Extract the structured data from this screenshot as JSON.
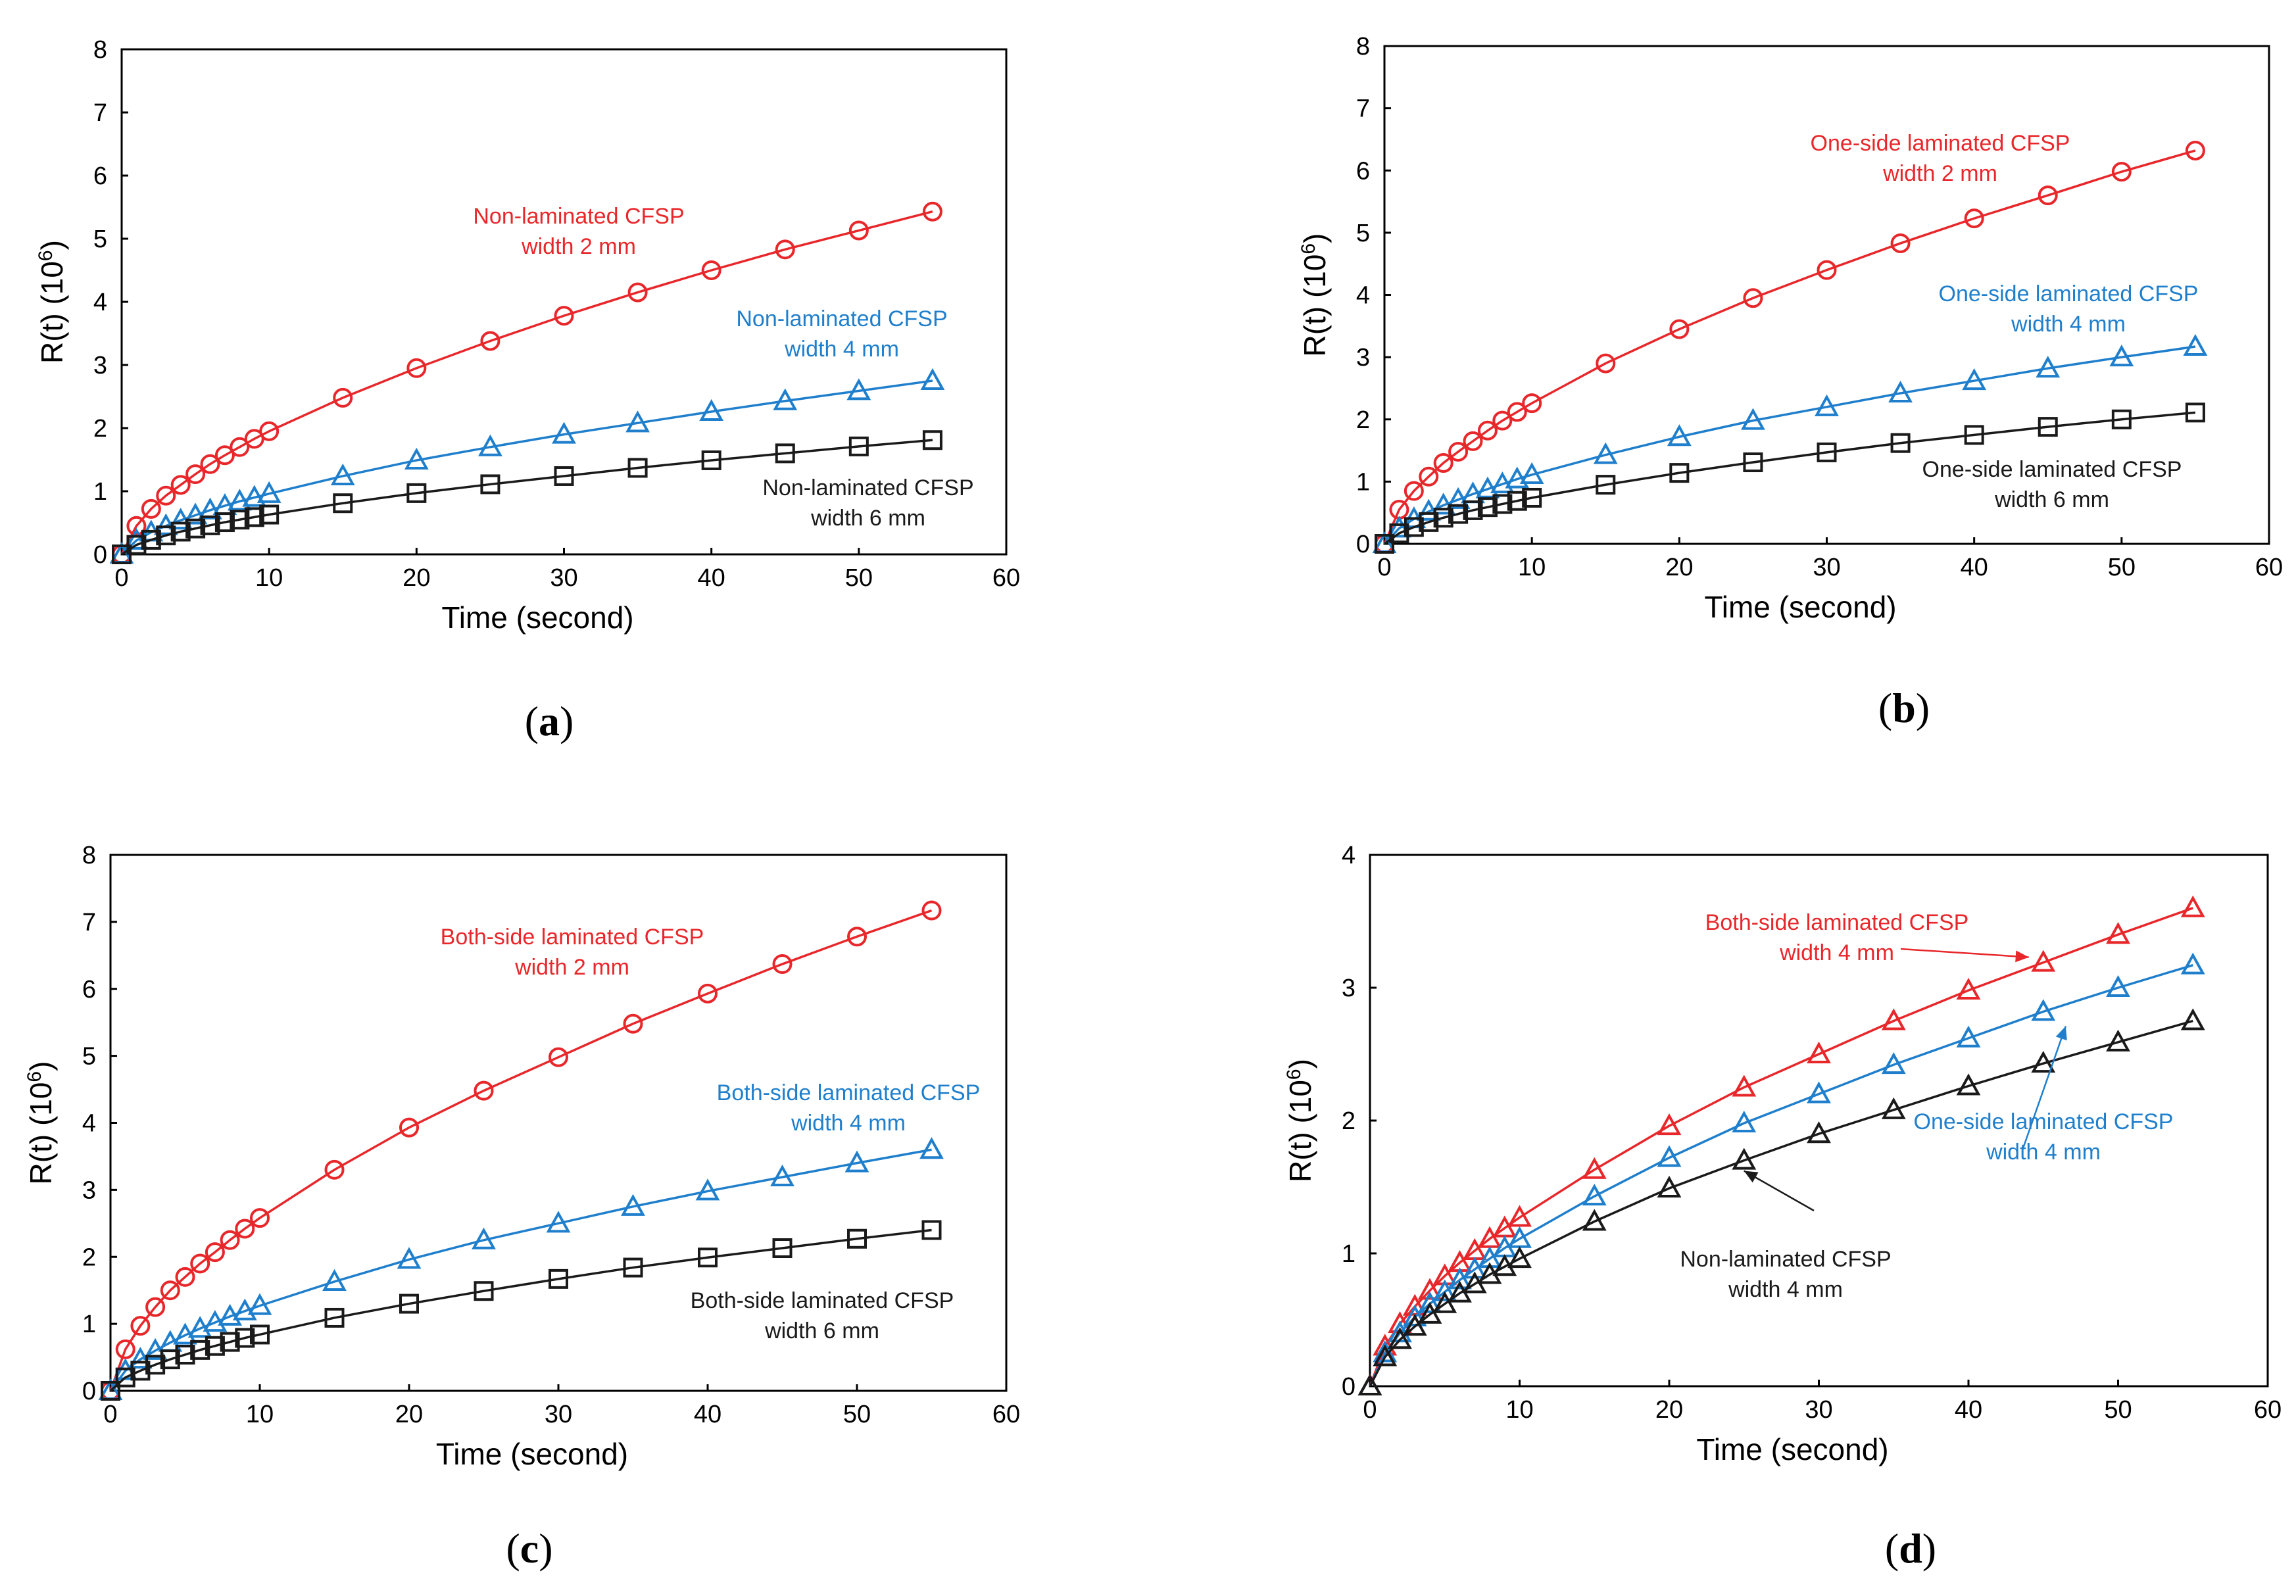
{
  "colors": {
    "red": "#e8272b",
    "blue": "#1f7fcc",
    "black": "#1a1a1a"
  },
  "chart_data": [
    {
      "panel": "a",
      "type": "line",
      "xlabel": "Time (second)",
      "ylabel_base": "R(t) (10",
      "ylabel_exp": "6",
      "ylabel_close": ")",
      "xlim": [
        0,
        60
      ],
      "ylim": [
        0,
        8
      ],
      "xticks": [
        0,
        10,
        20,
        30,
        40,
        50,
        60
      ],
      "yticks": [
        0,
        1,
        2,
        3,
        4,
        5,
        6,
        7,
        8
      ],
      "x": [
        0,
        1,
        2,
        3,
        4,
        5,
        6,
        7,
        8,
        9,
        10,
        15,
        20,
        25,
        30,
        35,
        40,
        45,
        50,
        55
      ],
      "series": [
        {
          "name": "Non-laminated CFSP width 2 mm",
          "color": "red",
          "marker": "circle",
          "values": [
            0,
            0.45,
            0.72,
            0.93,
            1.1,
            1.27,
            1.43,
            1.57,
            1.7,
            1.83,
            1.95,
            2.48,
            2.95,
            3.38,
            3.78,
            4.15,
            4.5,
            4.83,
            5.13,
            5.43
          ]
        },
        {
          "name": "Non-laminated CFSP width 4 mm",
          "color": "blue",
          "marker": "triangle",
          "values": [
            0,
            0.22,
            0.35,
            0.45,
            0.54,
            0.62,
            0.7,
            0.77,
            0.84,
            0.9,
            0.96,
            1.24,
            1.49,
            1.7,
            1.9,
            2.08,
            2.26,
            2.43,
            2.59,
            2.75
          ]
        },
        {
          "name": "Non-laminated CFSP width 6 mm",
          "color": "black",
          "marker": "square",
          "values": [
            0,
            0.15,
            0.23,
            0.3,
            0.36,
            0.41,
            0.46,
            0.51,
            0.55,
            0.59,
            0.63,
            0.81,
            0.97,
            1.11,
            1.24,
            1.37,
            1.49,
            1.6,
            1.71,
            1.81
          ]
        }
      ],
      "annotations": [
        {
          "lines": [
            "Non-laminated CFSP",
            "width 2 mm"
          ],
          "color": "red"
        },
        {
          "lines": [
            "Non-laminated CFSP",
            "width 4 mm"
          ],
          "color": "blue"
        },
        {
          "lines": [
            "Non-laminated CFSP",
            "width 6 mm"
          ],
          "color": "black"
        }
      ],
      "caption": "a"
    },
    {
      "panel": "b",
      "type": "line",
      "xlabel": "Time (second)",
      "ylabel_base": "R(t) (10",
      "ylabel_exp": "6",
      "ylabel_close": ")",
      "xlim": [
        0,
        60
      ],
      "ylim": [
        0,
        8
      ],
      "xticks": [
        0,
        10,
        20,
        30,
        40,
        50,
        60
      ],
      "yticks": [
        0,
        1,
        2,
        3,
        4,
        5,
        6,
        7,
        8
      ],
      "x": [
        0,
        1,
        2,
        3,
        4,
        5,
        6,
        7,
        8,
        9,
        10,
        15,
        20,
        25,
        30,
        35,
        40,
        45,
        50,
        55
      ],
      "series": [
        {
          "name": "One-side laminated CFSP width 2 mm",
          "color": "red",
          "marker": "circle",
          "values": [
            0,
            0.55,
            0.85,
            1.08,
            1.3,
            1.48,
            1.65,
            1.82,
            1.98,
            2.12,
            2.26,
            2.9,
            3.45,
            3.95,
            4.4,
            4.83,
            5.23,
            5.6,
            5.98,
            6.32
          ]
        },
        {
          "name": "One-side laminated CFSP width 4 mm",
          "color": "blue",
          "marker": "triangle",
          "values": [
            0,
            0.25,
            0.4,
            0.52,
            0.62,
            0.71,
            0.8,
            0.88,
            0.96,
            1.04,
            1.11,
            1.43,
            1.72,
            1.98,
            2.2,
            2.42,
            2.62,
            2.82,
            3.0,
            3.17
          ]
        },
        {
          "name": "One-side laminated CFSP width 6 mm",
          "color": "black",
          "marker": "square",
          "values": [
            0,
            0.17,
            0.27,
            0.35,
            0.42,
            0.48,
            0.54,
            0.59,
            0.64,
            0.69,
            0.74,
            0.95,
            1.14,
            1.31,
            1.47,
            1.62,
            1.75,
            1.88,
            2.0,
            2.11
          ]
        }
      ],
      "annotations": [
        {
          "lines": [
            "One-side laminated CFSP",
            "width 2 mm"
          ],
          "color": "red"
        },
        {
          "lines": [
            "One-side laminated CFSP",
            "width 4 mm"
          ],
          "color": "blue"
        },
        {
          "lines": [
            "One-side laminated CFSP",
            "width 6 mm"
          ],
          "color": "black"
        }
      ],
      "caption": "b"
    },
    {
      "panel": "c",
      "type": "line",
      "xlabel": "Time (second)",
      "ylabel_base": "R(t) (10",
      "ylabel_exp": "6",
      "ylabel_close": ")",
      "xlim": [
        0,
        60
      ],
      "ylim": [
        0,
        8
      ],
      "xticks": [
        0,
        10,
        20,
        30,
        40,
        50,
        60
      ],
      "yticks": [
        0,
        1,
        2,
        3,
        4,
        5,
        6,
        7,
        8
      ],
      "x": [
        0,
        1,
        2,
        3,
        4,
        5,
        6,
        7,
        8,
        9,
        10,
        15,
        20,
        25,
        30,
        35,
        40,
        45,
        50,
        55
      ],
      "series": [
        {
          "name": "Both-side laminated CFSP width 2 mm",
          "color": "red",
          "marker": "circle",
          "values": [
            0,
            0.62,
            0.97,
            1.25,
            1.5,
            1.7,
            1.9,
            2.07,
            2.25,
            2.42,
            2.58,
            3.3,
            3.93,
            4.48,
            4.98,
            5.48,
            5.93,
            6.37,
            6.78,
            7.17
          ]
        },
        {
          "name": "Both-side laminated CFSP width 4 mm",
          "color": "blue",
          "marker": "triangle",
          "values": [
            0,
            0.3,
            0.47,
            0.6,
            0.72,
            0.83,
            0.93,
            1.02,
            1.11,
            1.19,
            1.27,
            1.63,
            1.96,
            2.25,
            2.5,
            2.75,
            2.98,
            3.19,
            3.4,
            3.6
          ]
        },
        {
          "name": "Both-side laminated CFSP width 6 mm",
          "color": "black",
          "marker": "square",
          "values": [
            0,
            0.2,
            0.3,
            0.39,
            0.47,
            0.54,
            0.61,
            0.67,
            0.73,
            0.79,
            0.84,
            1.09,
            1.3,
            1.49,
            1.67,
            1.84,
            1.99,
            2.13,
            2.27,
            2.4
          ]
        }
      ],
      "annotations": [
        {
          "lines": [
            "Both-side laminated CFSP",
            "width 2 mm"
          ],
          "color": "red"
        },
        {
          "lines": [
            "Both-side laminated CFSP",
            "width 4 mm"
          ],
          "color": "blue"
        },
        {
          "lines": [
            "Both-side laminated CFSP",
            "width 6 mm"
          ],
          "color": "black"
        }
      ],
      "caption": "c"
    },
    {
      "panel": "d",
      "type": "line",
      "xlabel": "Time (second)",
      "ylabel_base": "R(t) (10",
      "ylabel_exp": "6",
      "ylabel_close": ")",
      "xlim": [
        0,
        60
      ],
      "ylim": [
        0,
        4
      ],
      "xticks": [
        0,
        10,
        20,
        30,
        40,
        50,
        60
      ],
      "yticks": [
        0,
        1,
        2,
        3,
        4
      ],
      "x": [
        0,
        1,
        2,
        3,
        4,
        5,
        6,
        7,
        8,
        9,
        10,
        15,
        20,
        25,
        30,
        35,
        40,
        45,
        50,
        55
      ],
      "series": [
        {
          "name": "Both-side laminated CFSP width 4 mm",
          "color": "red",
          "marker": "triangle",
          "values": [
            0,
            0.3,
            0.47,
            0.6,
            0.72,
            0.83,
            0.93,
            1.02,
            1.11,
            1.19,
            1.27,
            1.63,
            1.96,
            2.25,
            2.5,
            2.75,
            2.98,
            3.19,
            3.4,
            3.6
          ]
        },
        {
          "name": "One-side laminated CFSP width 4 mm",
          "color": "blue",
          "marker": "triangle",
          "values": [
            0,
            0.25,
            0.4,
            0.52,
            0.62,
            0.71,
            0.8,
            0.88,
            0.96,
            1.04,
            1.11,
            1.43,
            1.72,
            1.98,
            2.2,
            2.42,
            2.62,
            2.82,
            3.0,
            3.17
          ]
        },
        {
          "name": "Non-laminated CFSP width 4 mm",
          "color": "black",
          "marker": "triangle",
          "values": [
            0,
            0.22,
            0.35,
            0.45,
            0.54,
            0.62,
            0.7,
            0.77,
            0.84,
            0.9,
            0.96,
            1.24,
            1.49,
            1.7,
            1.9,
            2.08,
            2.26,
            2.43,
            2.59,
            2.75
          ]
        }
      ],
      "annotations": [
        {
          "lines": [
            "Both-side laminated CFSP",
            "width 4 mm"
          ],
          "color": "red"
        },
        {
          "lines": [
            "One-side laminated CFSP",
            "width 4 mm"
          ],
          "color": "blue"
        },
        {
          "lines": [
            "Non-laminated CFSP",
            "width 4 mm"
          ],
          "color": "black"
        }
      ],
      "caption": "d"
    }
  ]
}
